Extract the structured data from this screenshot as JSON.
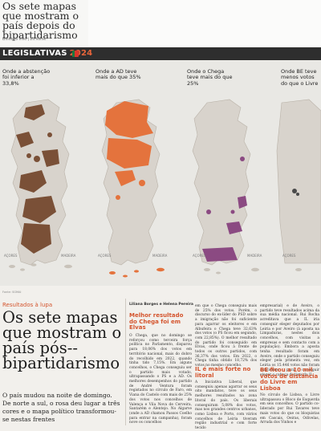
{
  "header": {
    "mini_title": "Os sete mapas que mostram o país depois do bipartidarismo",
    "mini_sub": "Dinheiro Vivo | 24 horas",
    "section": "LEGISLATIVAS",
    "section_year": "2024"
  },
  "maps": [
    {
      "label": "Onde a abstenção foi inferior a 33,8%",
      "color": "#7a5037"
    },
    {
      "label": "Onde a AD teve mais do que 35%",
      "color": "#e4733d"
    },
    {
      "label": "Onde o Chega teve mais do que 25%",
      "color": "#8b4a82"
    },
    {
      "label": "Onde BE teve menos votos do que o Livre",
      "color": "#4a4a4a"
    }
  ],
  "island_labels": [
    "AÇORES",
    "MADEIRA",
    "AÇORES",
    "MADEIRA",
    "AÇORES",
    "MADEIRA",
    "AÇORES"
  ],
  "article": {
    "kicker": "Resultados à lupa",
    "headline": "Os sete mapas que mostram o país pós--bipartidarismo",
    "lede": "O país mudou na noite de domingo. De norte a sul, o rosa deu lugar a três cores e o mapa político transformou-se nestas frentes",
    "byline": "Liliana Borges e Helena Pereira",
    "subheads": [
      "Melhor resultado do Chega foi em Elvas",
      "IL é mais forte no litoral",
      "BE ficou a 10 mil votos de distância do Livre em Lisboa"
    ],
    "col1": "O Chega, que no domingo se reforçou como terceira força política no Parlamento, disparou para 18,06% dos votos em território nacional, mais do dobro do recolhido em 2022, quando tinha tido 7,15%. Em alguns concelhos, o Chega conseguiu ser o partido mais votado, ultrapassando o PS e a AD. Os melhores desempenhos do partido de André Ventura foram registados no círculo de Faro, em Viana do Castelo com mais de 25% dos votos nos concelhos de Valença e Vila Nova de Cerveira, Santarém e Alentejo. No Algarve (onde a AD chamou Passos Coelho para entrar na campanha), foram nove os concelhos",
    "col2a": "em que o Chega conseguiu mais de 25% dos votos. Porém, o discurso do ex-líder do PSD sobre a imigração não foi suficiente para agarrar os eleitores e em Albufeira o Chega teve 32,63% dos votos (o PS ficou em segundo, com 22,85%). O melhor resultado do partido foi conseguido em Elvas, onde ficou à frente de todos os outros partidos, com 36,37% dos votos. Em 2022, o Chega tinha obtido 18,72% dos votos no mesmo concelho.",
    "col2b": "A Iniciativa Liberal, que conseguiu apenas agarrar os seus oito mandatos, teve os seus melhores resultados na zona litoral do país. Os liberais conseguiram 5,08% dos votos, mas nos grandes centros urbanos, como Lisboa e Porto, com vários concelhos de Leiria tiveram região industrial e com forte tecido",
    "col3a": "empresarial) e de Aveiro, o partido teve resultados acima da sua média nacional. Rui Rocha acreditava que a IL iria conseguir eleger deputados por Leiria e por Aveiro (à aposta na Limpaduras, nestes dois concelhos, com visitas a empresas e sem contacto com a população). Embora a aposta tenha resultado foram em Aveiro, onde o partido conseguiu eleger pela primeira vez, em Leiria os 15.446 votos não foram suficientes para conseguir eleger o cabeça de lista da IL.",
    "col3b": "No círculo de Lisboa, o Livre ultrapassou o Bloco de Esquerda em seis concelhos. O partido co-liderado por Rui Tavares teve mais votos do que os bloquistas em Cascais, Oeiras, Odivelas, Arruda dos Vinhos e"
  },
  "footer_note": "Fonte: SGMAI"
}
